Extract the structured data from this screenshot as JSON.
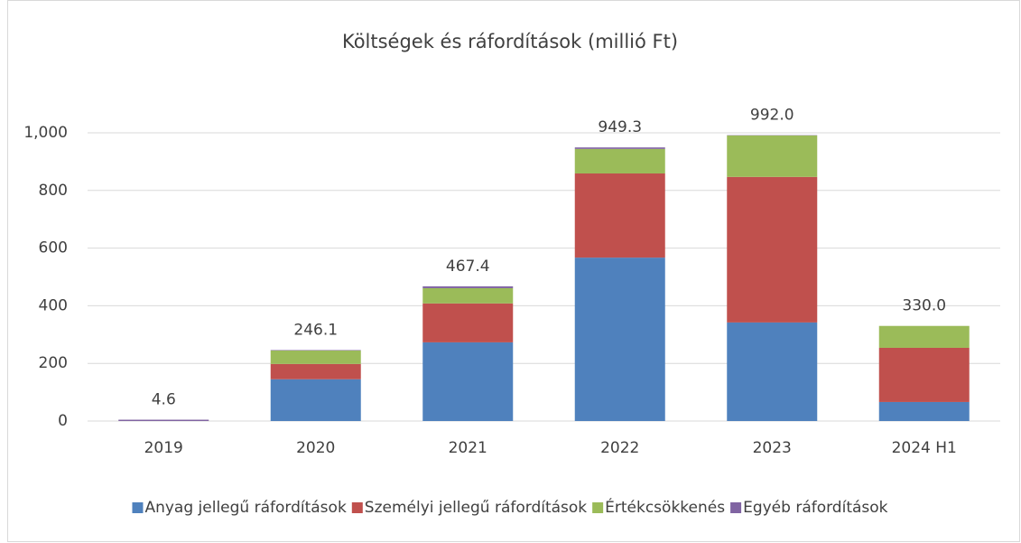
{
  "chart_data": {
    "type": "stacked_bar",
    "title": "Költségek és ráfordítások (millió Ft)",
    "categories": [
      "2019",
      "2020",
      "2021",
      "2022",
      "2023",
      "2024 H1"
    ],
    "series": [
      {
        "name": "Anyag jellegű ráfordítások",
        "color": "#4f81bd",
        "values": [
          0,
          145,
          273,
          567,
          342,
          66
        ]
      },
      {
        "name": "Személyi jellegű ráfordítások",
        "color": "#c0504d",
        "values": [
          0,
          53,
          135,
          292,
          505,
          188
        ]
      },
      {
        "name": "Értékcsökkenés",
        "color": "#9bbb59",
        "values": [
          0,
          46.5,
          53,
          85,
          144,
          76
        ]
      },
      {
        "name": "Egyéb ráfordítások",
        "color": "#8064a2",
        "values": [
          4.6,
          1.6,
          6.4,
          5.3,
          1,
          0
        ]
      }
    ],
    "totals": [
      4.6,
      246.1,
      467.4,
      949.3,
      992.0,
      330.0
    ],
    "total_labels": [
      "4.6",
      "246.1",
      "467.4",
      "949.3",
      "992.0",
      "330.0"
    ],
    "ylim": [
      0,
      1000
    ],
    "yticks": [
      0,
      200,
      400,
      600,
      800,
      {
        "value": 1000,
        "label": "1,000"
      }
    ],
    "grid": true,
    "legend": "bottom"
  }
}
